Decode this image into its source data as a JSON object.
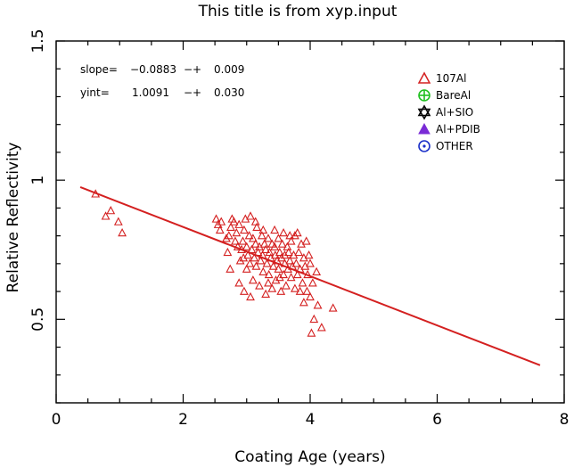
{
  "chart_data": {
    "type": "scatter",
    "title": "This title is from xyp.input",
    "xlabel": "Coating Age (years)",
    "ylabel": "Relative Reflectivity",
    "xlim": [
      0,
      8
    ],
    "ylim": [
      0.2,
      1.5
    ],
    "x_ticks": [
      0,
      2,
      4,
      6,
      8
    ],
    "x_tick_labels": [
      "0",
      "2",
      "4",
      "6",
      "8"
    ],
    "y_ticks": [
      0.5,
      1.0,
      1.5
    ],
    "y_tick_labels": [
      "0.5",
      "1",
      "1.5"
    ],
    "grid": false,
    "annotations": {
      "slope_label": "slope=",
      "slope_value": "−0.0883",
      "slope_pm": "−+",
      "slope_err": "0.009",
      "yint_label": "yint=",
      "yint_value": "1.0091",
      "yint_pm": "−+",
      "yint_err": "0.030"
    },
    "legend": {
      "placement": "top-right",
      "entries": [
        {
          "label": "107Al",
          "marker": "triangle-open",
          "color": "#d42020"
        },
        {
          "label": "BareAl",
          "marker": "circle-plus",
          "color": "#20c020"
        },
        {
          "label": "Al+SIO",
          "marker": "star-of-david",
          "color": "#000000"
        },
        {
          "label": "Al+PDIB",
          "marker": "triangle-filled",
          "color": "#7a2bd6"
        },
        {
          "label": "OTHER",
          "marker": "circle-dot",
          "color": "#1a2fc8"
        }
      ]
    },
    "fit_line": {
      "x": [
        0.38,
        7.62
      ],
      "y": [
        0.975,
        0.335
      ],
      "color": "#d42020"
    },
    "series": [
      {
        "name": "107Al",
        "color": "#d42020",
        "marker": "triangle-open",
        "points": [
          [
            0.62,
            0.95
          ],
          [
            0.78,
            0.87
          ],
          [
            0.86,
            0.89
          ],
          [
            0.98,
            0.85
          ],
          [
            1.04,
            0.81
          ],
          [
            2.52,
            0.86
          ],
          [
            2.55,
            0.84
          ],
          [
            2.6,
            0.85
          ],
          [
            2.68,
            0.79
          ],
          [
            2.72,
            0.8
          ],
          [
            2.75,
            0.83
          ],
          [
            2.77,
            0.86
          ],
          [
            2.8,
            0.85
          ],
          [
            2.82,
            0.78
          ],
          [
            2.84,
            0.81
          ],
          [
            2.86,
            0.76
          ],
          [
            2.88,
            0.84
          ],
          [
            2.9,
            0.71
          ],
          [
            2.92,
            0.75
          ],
          [
            2.94,
            0.78
          ],
          [
            2.95,
            0.72
          ],
          [
            2.96,
            0.82
          ],
          [
            2.98,
            0.86
          ],
          [
            3.0,
            0.68
          ],
          [
            3.0,
            0.76
          ],
          [
            3.02,
            0.73
          ],
          [
            3.04,
            0.8
          ],
          [
            3.05,
            0.7
          ],
          [
            3.06,
            0.87
          ],
          [
            3.08,
            0.75
          ],
          [
            3.1,
            0.64
          ],
          [
            3.1,
            0.79
          ],
          [
            3.12,
            0.72
          ],
          [
            3.14,
            0.77
          ],
          [
            3.15,
            0.69
          ],
          [
            3.16,
            0.83
          ],
          [
            3.18,
            0.74
          ],
          [
            3.2,
            0.62
          ],
          [
            3.2,
            0.76
          ],
          [
            3.22,
            0.71
          ],
          [
            3.24,
            0.8
          ],
          [
            3.25,
            0.73
          ],
          [
            3.26,
            0.67
          ],
          [
            3.28,
            0.77
          ],
          [
            3.3,
            0.75
          ],
          [
            3.3,
            0.59
          ],
          [
            3.32,
            0.7
          ],
          [
            3.34,
            0.79
          ],
          [
            3.35,
            0.66
          ],
          [
            3.36,
            0.74
          ],
          [
            3.38,
            0.72
          ],
          [
            3.4,
            0.77
          ],
          [
            3.4,
            0.61
          ],
          [
            3.42,
            0.69
          ],
          [
            3.44,
            0.76
          ],
          [
            3.45,
            0.73
          ],
          [
            3.46,
            0.64
          ],
          [
            3.48,
            0.71
          ],
          [
            3.5,
            0.79
          ],
          [
            3.5,
            0.68
          ],
          [
            3.52,
            0.74
          ],
          [
            3.54,
            0.6
          ],
          [
            3.55,
            0.72
          ],
          [
            3.56,
            0.77
          ],
          [
            3.58,
            0.66
          ],
          [
            3.6,
            0.73
          ],
          [
            3.6,
            0.7
          ],
          [
            3.62,
            0.62
          ],
          [
            3.64,
            0.76
          ],
          [
            3.65,
            0.68
          ],
          [
            3.66,
            0.74
          ],
          [
            3.68,
            0.71
          ],
          [
            3.7,
            0.65
          ],
          [
            3.7,
            0.78
          ],
          [
            3.72,
            0.69
          ],
          [
            3.74,
            0.73
          ],
          [
            3.76,
            0.61
          ],
          [
            3.78,
            0.7
          ],
          [
            3.8,
            0.81
          ],
          [
            3.8,
            0.66
          ],
          [
            3.82,
            0.74
          ],
          [
            3.84,
            0.68
          ],
          [
            3.86,
            0.77
          ],
          [
            3.88,
            0.63
          ],
          [
            3.9,
            0.72
          ],
          [
            3.9,
            0.56
          ],
          [
            3.92,
            0.69
          ],
          [
            3.94,
            0.78
          ],
          [
            3.95,
            0.6
          ],
          [
            3.96,
            0.66
          ],
          [
            3.98,
            0.73
          ],
          [
            4.0,
            0.58
          ],
          [
            4.0,
            0.7
          ],
          [
            4.02,
            0.45
          ],
          [
            4.04,
            0.63
          ],
          [
            4.06,
            0.5
          ],
          [
            4.1,
            0.67
          ],
          [
            4.12,
            0.55
          ],
          [
            4.18,
            0.47
          ],
          [
            4.36,
            0.54
          ],
          [
            2.58,
            0.82
          ],
          [
            2.7,
            0.74
          ],
          [
            2.74,
            0.68
          ],
          [
            2.88,
            0.63
          ],
          [
            2.96,
            0.6
          ],
          [
            3.06,
            0.58
          ],
          [
            3.14,
            0.85
          ],
          [
            3.26,
            0.82
          ],
          [
            3.44,
            0.82
          ],
          [
            3.58,
            0.81
          ],
          [
            3.68,
            0.8
          ],
          [
            3.76,
            0.8
          ],
          [
            3.84,
            0.6
          ],
          [
            3.34,
            0.63
          ],
          [
            3.52,
            0.65
          ]
        ]
      }
    ]
  }
}
